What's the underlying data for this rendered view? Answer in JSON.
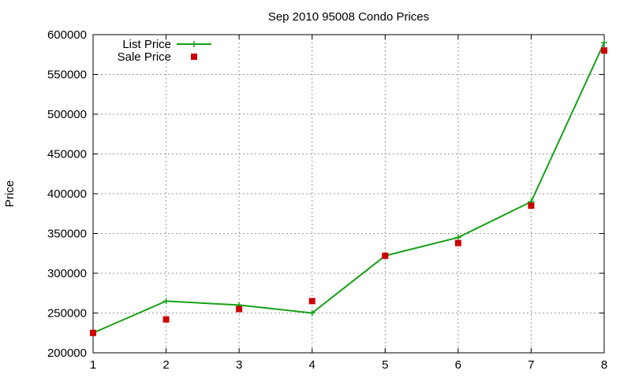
{
  "chart_data": {
    "type": "line",
    "title": "Sep 2010 95008 Condo Prices",
    "xlabel": "",
    "ylabel": "Price",
    "xlim": [
      1,
      8
    ],
    "ylim": [
      200000,
      600000
    ],
    "x_ticks": [
      1,
      2,
      3,
      4,
      5,
      6,
      7,
      8
    ],
    "y_ticks": [
      200000,
      250000,
      300000,
      350000,
      400000,
      450000,
      500000,
      550000,
      600000
    ],
    "grid": true,
    "legend_position": "top-left",
    "x": [
      1,
      2,
      3,
      4,
      5,
      6,
      7,
      8
    ],
    "series": [
      {
        "name": "List Price",
        "style": "line+plus-markers",
        "color": "#16a116",
        "values": [
          225000,
          265000,
          260000,
          250000,
          322000,
          345000,
          390000,
          590000
        ]
      },
      {
        "name": "Sale Price",
        "style": "square-markers",
        "color": "#cc0000",
        "values": [
          225000,
          242000,
          255000,
          265000,
          322000,
          338000,
          385000,
          580000
        ]
      }
    ]
  }
}
